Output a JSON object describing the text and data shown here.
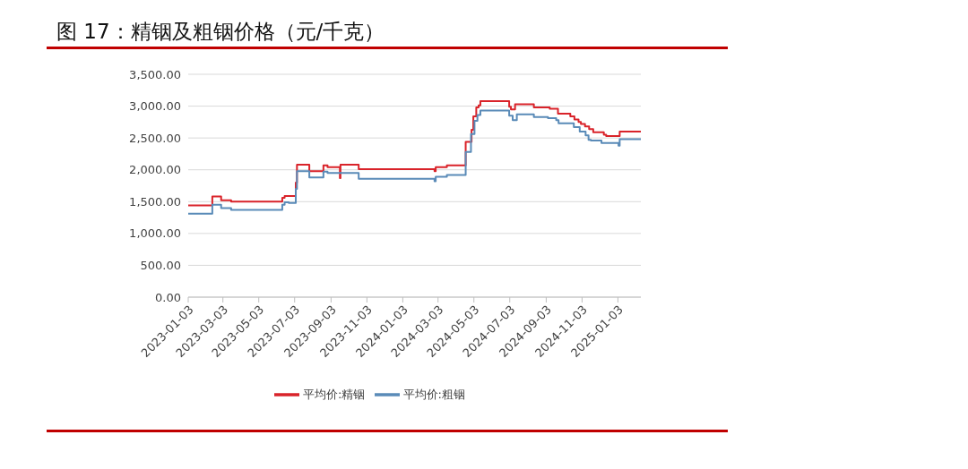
{
  "chart_data": {
    "type": "step",
    "title": "图 17：精铟及粗铟价格（元/千克）",
    "series": [
      {
        "name": "平均价:精铟",
        "color": "#d9232a",
        "x": [
          "2023-01-03",
          "2023-02-13",
          "2023-02-28",
          "2023-03-17",
          "2023-06-12",
          "2023-06-16",
          "2023-07-05",
          "2023-07-07",
          "2023-07-28",
          "2023-08-21",
          "2023-08-28",
          "2023-09-18",
          "2023-09-19",
          "2023-10-20",
          "2024-02-26",
          "2024-02-28",
          "2024-03-18",
          "2024-04-19",
          "2024-04-29",
          "2024-05-02",
          "2024-05-07",
          "2024-05-11",
          "2024-05-14",
          "2024-07-02",
          "2024-07-05",
          "2024-07-12",
          "2024-08-13",
          "2024-09-09",
          "2024-09-23",
          "2024-10-14",
          "2024-10-21",
          "2024-10-28",
          "2024-11-01",
          "2024-11-08",
          "2024-11-15",
          "2024-11-22",
          "2024-12-10",
          "2024-12-14",
          "2025-01-06",
          "2025-02-11"
        ],
        "values": [
          1440,
          1580,
          1520,
          1500,
          1560,
          1590,
          1800,
          2080,
          1980,
          2070,
          2040,
          1870,
          2080,
          2010,
          1980,
          2040,
          2070,
          2440,
          2630,
          2840,
          2980,
          3010,
          3080,
          2990,
          2950,
          3030,
          2980,
          2960,
          2880,
          2840,
          2790,
          2750,
          2720,
          2680,
          2640,
          2590,
          2550,
          2530,
          2600,
          2600
        ]
      },
      {
        "name": "平均价:粗铟",
        "color": "#5a8bb8",
        "x": [
          "2023-01-03",
          "2023-02-13",
          "2023-02-28",
          "2023-03-17",
          "2023-06-12",
          "2023-06-16",
          "2023-06-23",
          "2023-07-05",
          "2023-07-07",
          "2023-07-28",
          "2023-08-21",
          "2023-08-28",
          "2023-10-20",
          "2024-02-26",
          "2024-02-28",
          "2024-03-18",
          "2024-04-19",
          "2024-04-28",
          "2024-05-04",
          "2024-05-09",
          "2024-05-14",
          "2024-07-02",
          "2024-07-08",
          "2024-07-15",
          "2024-08-13",
          "2024-09-06",
          "2024-09-20",
          "2024-09-24",
          "2024-10-20",
          "2024-10-30",
          "2024-11-09",
          "2024-11-14",
          "2024-11-18",
          "2024-12-06",
          "2025-01-04",
          "2025-01-06",
          "2025-02-11"
        ],
        "values": [
          1310,
          1450,
          1400,
          1370,
          1450,
          1490,
          1480,
          1700,
          1980,
          1880,
          1970,
          1950,
          1860,
          1820,
          1890,
          1920,
          2280,
          2560,
          2770,
          2860,
          2930,
          2850,
          2780,
          2870,
          2830,
          2810,
          2780,
          2730,
          2670,
          2600,
          2540,
          2470,
          2460,
          2420,
          2380,
          2480,
          2480
        ]
      }
    ],
    "xlim": [
      "2023-01-03",
      "2025-02-11"
    ],
    "xticks": [
      "2023-01-03",
      "2023-03-03",
      "2023-05-03",
      "2023-07-03",
      "2023-09-03",
      "2023-11-03",
      "2024-01-03",
      "2024-03-03",
      "2024-05-03",
      "2024-07-03",
      "2024-09-03",
      "2024-11-03",
      "2025-01-03"
    ],
    "ylim": [
      0,
      3500
    ],
    "yticks": [
      {
        "value": 0,
        "label": "0.00"
      },
      {
        "value": 500,
        "label": "500.00"
      },
      {
        "value": 1000,
        "label": "1,000.00"
      },
      {
        "value": 1500,
        "label": "1,500.00"
      },
      {
        "value": 2000,
        "label": "2,000.00"
      },
      {
        "value": 2500,
        "label": "2,500.00"
      },
      {
        "value": 3000,
        "label": "3,000.00"
      },
      {
        "value": 3500,
        "label": "3,500.00"
      }
    ],
    "grid": "y",
    "legend": "bottom",
    "marker": "none"
  }
}
